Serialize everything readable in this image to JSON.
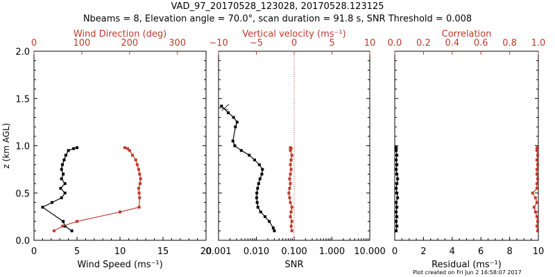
{
  "header": {
    "title_line1": "VAD_97_20170528_123028, 20170528.123125",
    "title_line2": "Nbeams = 8, Elevation angle = 70.0°, scan duration = 91.8 s, SNR Threshold = 0.008"
  },
  "footer": {
    "note": "Plot created on Fri Jun  2 16:58:07 2017"
  },
  "colors": {
    "black": "#000000",
    "red": "#c0392b"
  },
  "chart_data": [
    {
      "type": "line",
      "panel": "wind",
      "ylabel": "z (km AGL)",
      "ylim": [
        0,
        2
      ],
      "yticks": [
        "0.0",
        "0.5",
        "1.0",
        "1.5",
        "2.0"
      ],
      "xlabel": "Wind Speed (ms⁻¹)",
      "xlim": [
        0,
        20
      ],
      "xticks": [
        "0",
        "5",
        "10",
        "15",
        "20"
      ],
      "top_xlabel": "Wind Direction (deg)",
      "top_xlim": [
        0,
        360
      ],
      "top_xticks": [
        "0",
        "100",
        "200",
        "300"
      ],
      "series": [
        {
          "axis": "bottom",
          "color": "black",
          "x": [
            4.4,
            3.6,
            3.4,
            1.0,
            2.1,
            3.2,
            3.6,
            3.1,
            3.6,
            3.2,
            3.4,
            3.2,
            3.3,
            3.5,
            3.7,
            4.0,
            4.6,
            5.0
          ],
          "y": [
            0.1,
            0.15,
            0.2,
            0.35,
            0.4,
            0.45,
            0.5,
            0.55,
            0.6,
            0.65,
            0.7,
            0.75,
            0.8,
            0.85,
            0.9,
            0.95,
            0.97,
            0.98
          ]
        },
        {
          "axis": "top",
          "color": "red",
          "x": [
            42,
            60,
            90,
            180,
            220,
            221,
            220,
            219,
            222,
            223,
            221,
            219,
            216,
            213,
            206,
            200,
            196,
            190
          ],
          "y": [
            0.1,
            0.15,
            0.2,
            0.3,
            0.35,
            0.45,
            0.5,
            0.55,
            0.6,
            0.65,
            0.7,
            0.75,
            0.8,
            0.85,
            0.9,
            0.95,
            0.97,
            0.98
          ]
        }
      ]
    },
    {
      "type": "line",
      "panel": "snr",
      "xlabel": "SNR",
      "xscale": "log",
      "xlim": [
        0.001,
        10
      ],
      "xticks": [
        "0.001",
        "0.010",
        "0.100",
        "1.000",
        "10.000"
      ],
      "top_xlabel": "Vertical velocity (ms⁻¹)",
      "top_xlim": [
        -10,
        10
      ],
      "top_xticks": [
        "−10",
        "−5",
        "0",
        "5",
        "10"
      ],
      "zero_reference": 0,
      "series": [
        {
          "axis": "bottom",
          "color": "black",
          "x": [
            0.03,
            0.028,
            0.022,
            0.017,
            0.013,
            0.011,
            0.0105,
            0.0102,
            0.0103,
            0.0108,
            0.0115,
            0.0125,
            0.014,
            0.0145,
            0.012,
            0.009,
            0.0065,
            0.004,
            0.0027,
            0.0024,
            0.0028,
            0.0031,
            0.0025,
            0.0018,
            0.0012
          ],
          "y": [
            0.1,
            0.13,
            0.2,
            0.25,
            0.3,
            0.35,
            0.4,
            0.45,
            0.5,
            0.55,
            0.6,
            0.65,
            0.7,
            0.75,
            0.8,
            0.85,
            0.9,
            0.95,
            1.0,
            1.05,
            1.2,
            1.25,
            1.3,
            1.35,
            1.42
          ]
        },
        {
          "axis": "top",
          "color": "red",
          "x": [
            -0.3,
            -0.4,
            -0.3,
            -0.5,
            -0.4,
            -0.3,
            -0.5,
            -0.6,
            -0.7,
            -0.6,
            -0.5,
            -0.6,
            -0.5,
            -0.4,
            -0.5,
            -0.4,
            -0.3,
            -0.5,
            -0.4,
            -0.5
          ],
          "y": [
            0.1,
            0.15,
            0.2,
            0.25,
            0.3,
            0.35,
            0.4,
            0.45,
            0.5,
            0.55,
            0.6,
            0.65,
            0.7,
            0.75,
            0.8,
            0.85,
            0.9,
            0.95,
            0.97,
            0.98
          ]
        },
        {
          "axis": "bottom",
          "color": "black",
          "style": "thin",
          "x": [
            0.0012,
            0.0018
          ],
          "y": [
            1.4,
            1.38
          ]
        },
        {
          "axis": "bottom",
          "color": "black",
          "style": "thin",
          "x": [
            0.0012,
            0.0019
          ],
          "y": [
            1.37,
            1.44
          ]
        }
      ]
    },
    {
      "type": "line",
      "panel": "residual",
      "xlabel": "Residual (ms⁻¹)",
      "xlim": [
        0,
        10
      ],
      "xticks": [
        "0",
        "2",
        "4",
        "6",
        "8",
        "10"
      ],
      "top_xlabel": "Correlation",
      "top_xlim": [
        0,
        1
      ],
      "top_xticks": [
        "0.0",
        "0.2",
        "0.4",
        "0.6",
        "0.8",
        "1.0"
      ],
      "series": [
        {
          "axis": "bottom",
          "color": "black",
          "x": [
            0.1,
            0.15,
            0.1,
            0.15,
            0.1,
            0.15,
            0.1,
            0.2,
            0.15,
            0.1,
            0.15,
            0.2,
            0.15,
            0.1,
            0.15,
            0.1,
            0.15,
            0.1,
            0.1,
            0.1
          ],
          "y": [
            0.1,
            0.15,
            0.2,
            0.25,
            0.3,
            0.35,
            0.4,
            0.45,
            0.5,
            0.55,
            0.6,
            0.65,
            0.7,
            0.75,
            0.8,
            0.85,
            0.9,
            0.95,
            0.97,
            0.98
          ]
        },
        {
          "axis": "top",
          "color": "red",
          "x": [
            0.995,
            0.99,
            0.995,
            0.99,
            0.98,
            0.97,
            0.99,
            0.98,
            0.96,
            0.99,
            0.99,
            0.995,
            0.99,
            0.99,
            0.995,
            0.99,
            0.995,
            0.99,
            0.99,
            0.995
          ],
          "y": [
            0.1,
            0.15,
            0.2,
            0.25,
            0.3,
            0.35,
            0.4,
            0.45,
            0.5,
            0.55,
            0.6,
            0.65,
            0.7,
            0.75,
            0.8,
            0.85,
            0.9,
            0.95,
            0.97,
            0.98
          ]
        }
      ]
    }
  ]
}
